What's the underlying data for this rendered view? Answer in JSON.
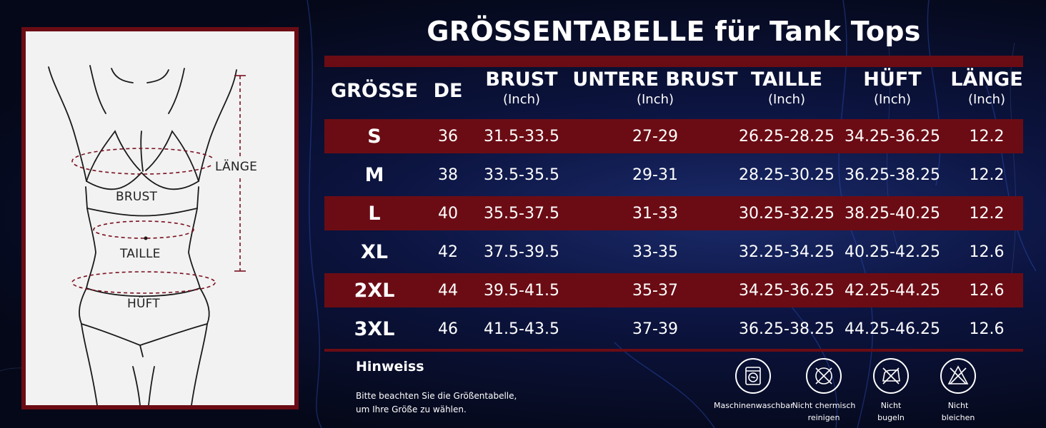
{
  "title": "GRÖSSENTABELLE für Tank Tops",
  "figure": {
    "labels": {
      "length": "LÄNGE",
      "bust": "BRUST",
      "waist": "TAILLE",
      "hip": "HÜFT"
    }
  },
  "table": {
    "headers": [
      {
        "main": "GRÖSSE",
        "unit": ""
      },
      {
        "main": "DE",
        "unit": ""
      },
      {
        "main": "BRUST",
        "unit": "(Inch)"
      },
      {
        "main": "UNTERE BRUST",
        "unit": "(Inch)"
      },
      {
        "main": "TAILLE",
        "unit": "(Inch)"
      },
      {
        "main": "HÜFT",
        "unit": "(Inch)"
      },
      {
        "main": "LÄNGE",
        "unit": "(Inch)"
      }
    ],
    "rows": [
      {
        "size": "S",
        "de": "36",
        "bust": "31.5-33.5",
        "under_bust": "27-29",
        "waist": "26.25-28.25",
        "hip": "34.25-36.25",
        "length": "12.2"
      },
      {
        "size": "M",
        "de": "38",
        "bust": "33.5-35.5",
        "under_bust": "29-31",
        "waist": "28.25-30.25",
        "hip": "36.25-38.25",
        "length": "12.2"
      },
      {
        "size": "L",
        "de": "40",
        "bust": "35.5-37.5",
        "under_bust": "31-33",
        "waist": "30.25-32.25",
        "hip": "38.25-40.25",
        "length": "12.2"
      },
      {
        "size": "XL",
        "de": "42",
        "bust": "37.5-39.5",
        "under_bust": "33-35",
        "waist": "32.25-34.25",
        "hip": "40.25-42.25",
        "length": "12.6"
      },
      {
        "size": "2XL",
        "de": "44",
        "bust": "39.5-41.5",
        "under_bust": "35-37",
        "waist": "34.25-36.25",
        "hip": "42.25-44.25",
        "length": "12.6"
      },
      {
        "size": "3XL",
        "de": "46",
        "bust": "41.5-43.5",
        "under_bust": "37-39",
        "waist": "36.25-38.25",
        "hip": "44.25-46.25",
        "length": "12.6"
      }
    ]
  },
  "note": {
    "title": "Hinweiss",
    "line1": "Bitte beachten Sie die Größentabelle,",
    "line2": "um Ihre Größe zu wählen."
  },
  "care": [
    {
      "icon": "washing-machine-icon",
      "line1": "Maschinenwaschbar",
      "line2": ""
    },
    {
      "icon": "no-dry-clean-icon",
      "line1": "Nicht chermisch",
      "line2": "reinigen"
    },
    {
      "icon": "no-iron-icon",
      "line1": "Nicht",
      "line2": "bugeln"
    },
    {
      "icon": "no-bleach-icon",
      "line1": "Nicht",
      "line2": "bleichen"
    }
  ],
  "colors": {
    "accent": "#6b0c14",
    "background": "#0c1440",
    "text": "#ffffff",
    "panel": "#f2f2f2"
  }
}
